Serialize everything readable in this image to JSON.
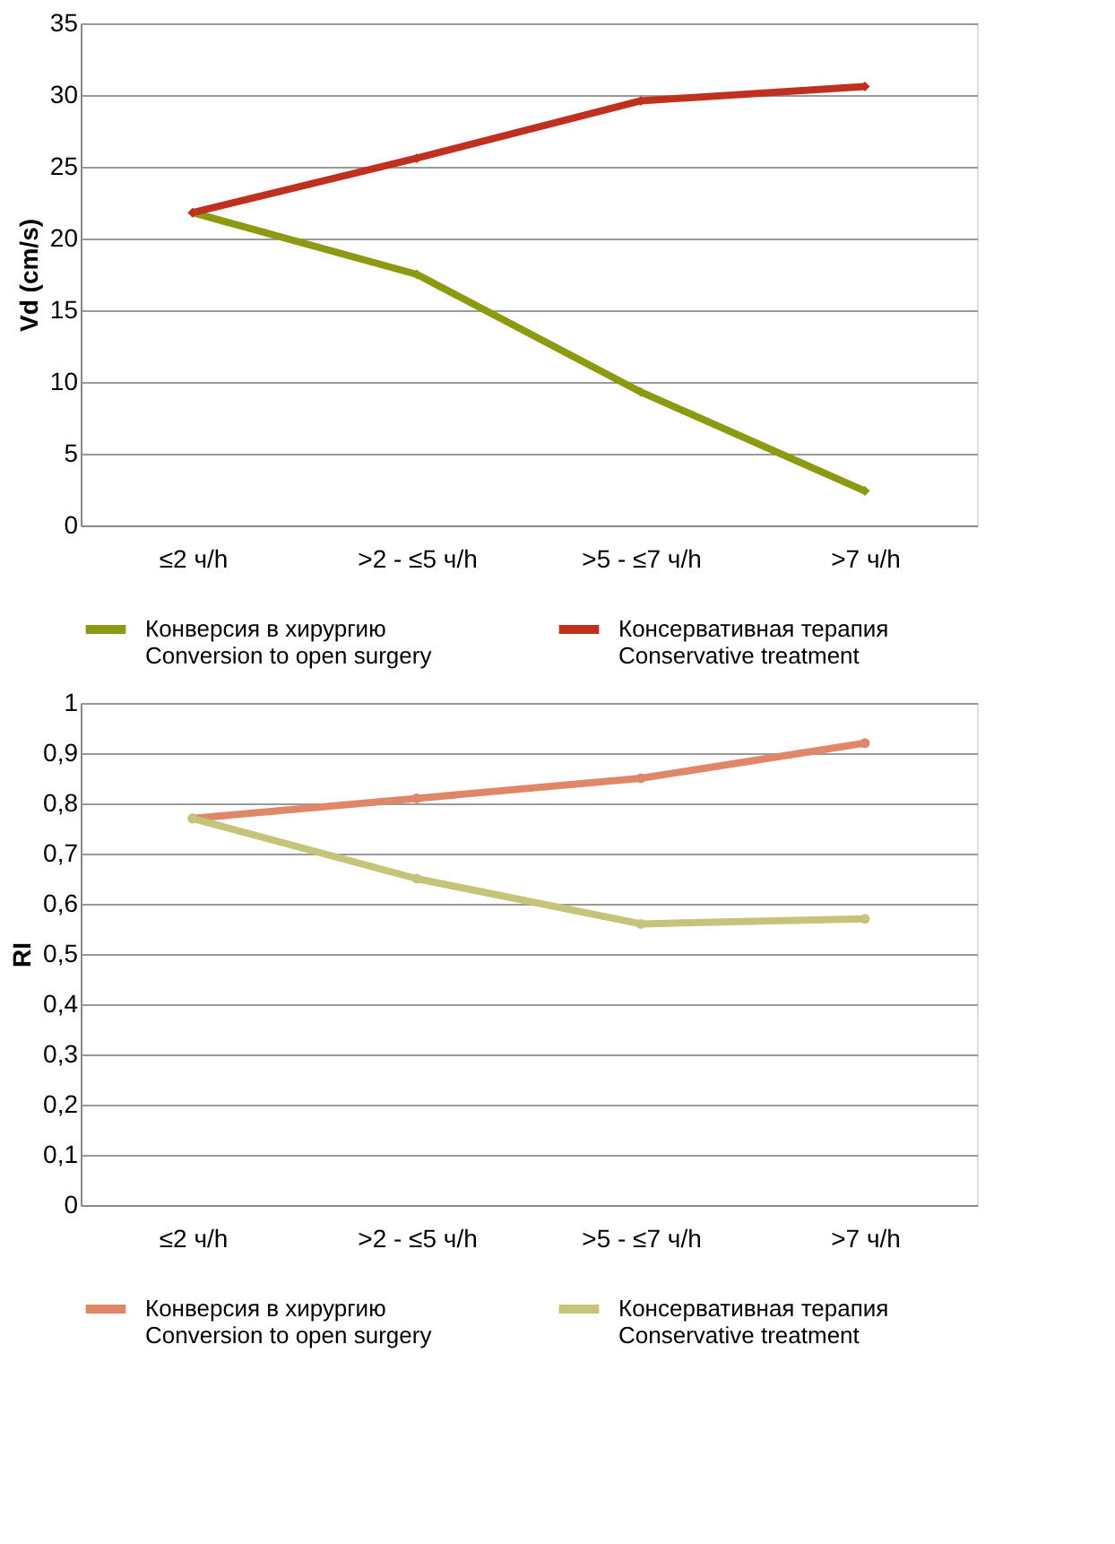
{
  "chart_data": [
    {
      "type": "line",
      "ylabel": "Vd (cm/s)",
      "categories": [
        "≤2 ч/h",
        ">2 - ≤5 ч/h",
        ">5 - ≤7 ч/h",
        ">7 ч/h"
      ],
      "series": [
        {
          "name": "Конверсия в хирургию\nConversion to open surgery",
          "color": "#8b9a10",
          "values": [
            21.8,
            17.5,
            9.3,
            2.4
          ]
        },
        {
          "name": "Консервативная терапия\nConservative treatment",
          "color": "#c0301e",
          "values": [
            21.8,
            25.6,
            29.6,
            30.6
          ]
        }
      ],
      "ylim": [
        0,
        35
      ],
      "yticks": [
        0,
        5,
        10,
        15,
        20,
        25,
        30,
        35
      ],
      "grid": "y",
      "legend": "bottom",
      "marker": "diamond",
      "line_style": "solid"
    },
    {
      "type": "line",
      "ylabel": "RI",
      "categories": [
        "≤2 ч/h",
        ">2 - ≤5 ч/h",
        ">5 - ≤7 ч/h",
        ">7 ч/h"
      ],
      "series": [
        {
          "name": "Конверсия в хирургию\nConversion to open surgery",
          "color": "#e0876a",
          "values": [
            0.77,
            0.81,
            0.85,
            0.92
          ]
        },
        {
          "name": "Консервативная терапия\nConservative treatment",
          "color": "#c5c47a",
          "values": [
            0.77,
            0.65,
            0.56,
            0.57
          ]
        }
      ],
      "ylim": [
        0,
        1
      ],
      "yticks": [
        0,
        {
          "value": 0.1,
          "label": "0,1"
        },
        {
          "value": 0.2,
          "label": "0,2"
        },
        {
          "value": 0.3,
          "label": "0,3"
        },
        {
          "value": 0.4,
          "label": "0,4"
        },
        {
          "value": 0.5,
          "label": "0,5"
        },
        {
          "value": 0.6,
          "label": "0,6"
        },
        {
          "value": 0.7,
          "label": "0,7"
        },
        {
          "value": 0.8,
          "label": "0,8"
        },
        {
          "value": 0.9,
          "label": "0,9"
        },
        1
      ],
      "grid": "y",
      "legend": "bottom",
      "marker": "circle",
      "line_style": "solid"
    }
  ]
}
